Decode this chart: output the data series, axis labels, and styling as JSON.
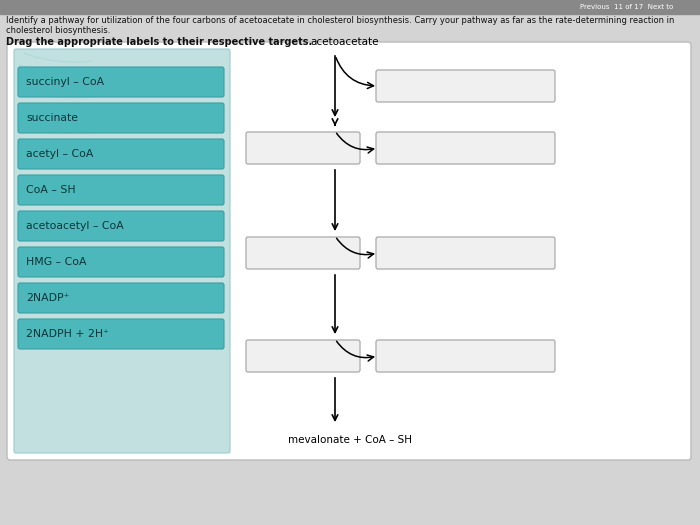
{
  "title_line1": "Identify a pathway for utilization of the four carbons of acetoacetate in cholesterol biosynthesis. Carry your pathway as far as the rate-determining reaction in",
  "title_line2": "cholesterol biosynthesis.",
  "subtitle": "Drag the appropriate labels to their respective targets.",
  "label_texts": [
    "succinyl – CoA",
    "succinate",
    "acetyl – CoA",
    "CoA – SH",
    "acetoacetyl – CoA",
    "HMG – CoA",
    "2NADP⁺",
    "2NADPH + 2H⁺"
  ],
  "label_box_fill": "#4db8bb",
  "label_box_edge": "#3aa0a3",
  "left_panel_fill_top": "#b8dede",
  "left_panel_fill_bot": "#d5ecec",
  "target_box_fill": "#f0f0f0",
  "target_box_edge": "#aaaaaa",
  "acetoacetate_text": "acetoacetate",
  "bottom_text": "mevalonate + CoA – SH",
  "outer_bg": "#d4d4d4",
  "browser_bar": "#888888",
  "panel_bg": "white",
  "text_color": "#111111"
}
